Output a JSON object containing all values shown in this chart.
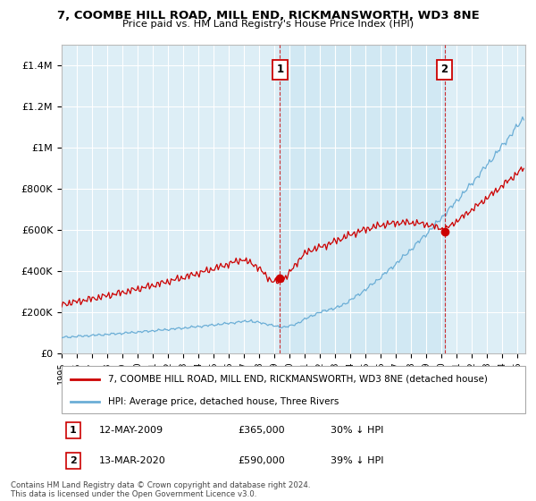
{
  "title": "7, COOMBE HILL ROAD, MILL END, RICKMANSWORTH, WD3 8NE",
  "subtitle": "Price paid vs. HM Land Registry's House Price Index (HPI)",
  "ylabel_ticks": [
    "£0",
    "£200K",
    "£400K",
    "£600K",
    "£800K",
    "£1M",
    "£1.2M",
    "£1.4M"
  ],
  "ylim": [
    0,
    1500000
  ],
  "xlim_start": 1995.0,
  "xlim_end": 2025.5,
  "sale1_x": 2009.36,
  "sale1_y": 365000,
  "sale1_label": "1",
  "sale2_x": 2020.19,
  "sale2_y": 590000,
  "sale2_label": "2",
  "legend_red": "7, COOMBE HILL ROAD, MILL END, RICKMANSWORTH, WD3 8NE (detached house)",
  "legend_blue": "HPI: Average price, detached house, Three Rivers",
  "ann1_box": "1",
  "ann1_date": "12-MAY-2009",
  "ann1_price": "£365,000",
  "ann1_hpi": "30% ↓ HPI",
  "ann2_box": "2",
  "ann2_date": "13-MAR-2020",
  "ann2_price": "£590,000",
  "ann2_hpi": "39% ↓ HPI",
  "footer": "Contains HM Land Registry data © Crown copyright and database right 2024.\nThis data is licensed under the Open Government Licence v3.0.",
  "red_color": "#cc0000",
  "blue_color": "#6baed6",
  "bg_color": "#ddeef6",
  "shade_color": "#c8e4f2",
  "grid_color": "#ffffff",
  "vline_color": "#cc0000"
}
